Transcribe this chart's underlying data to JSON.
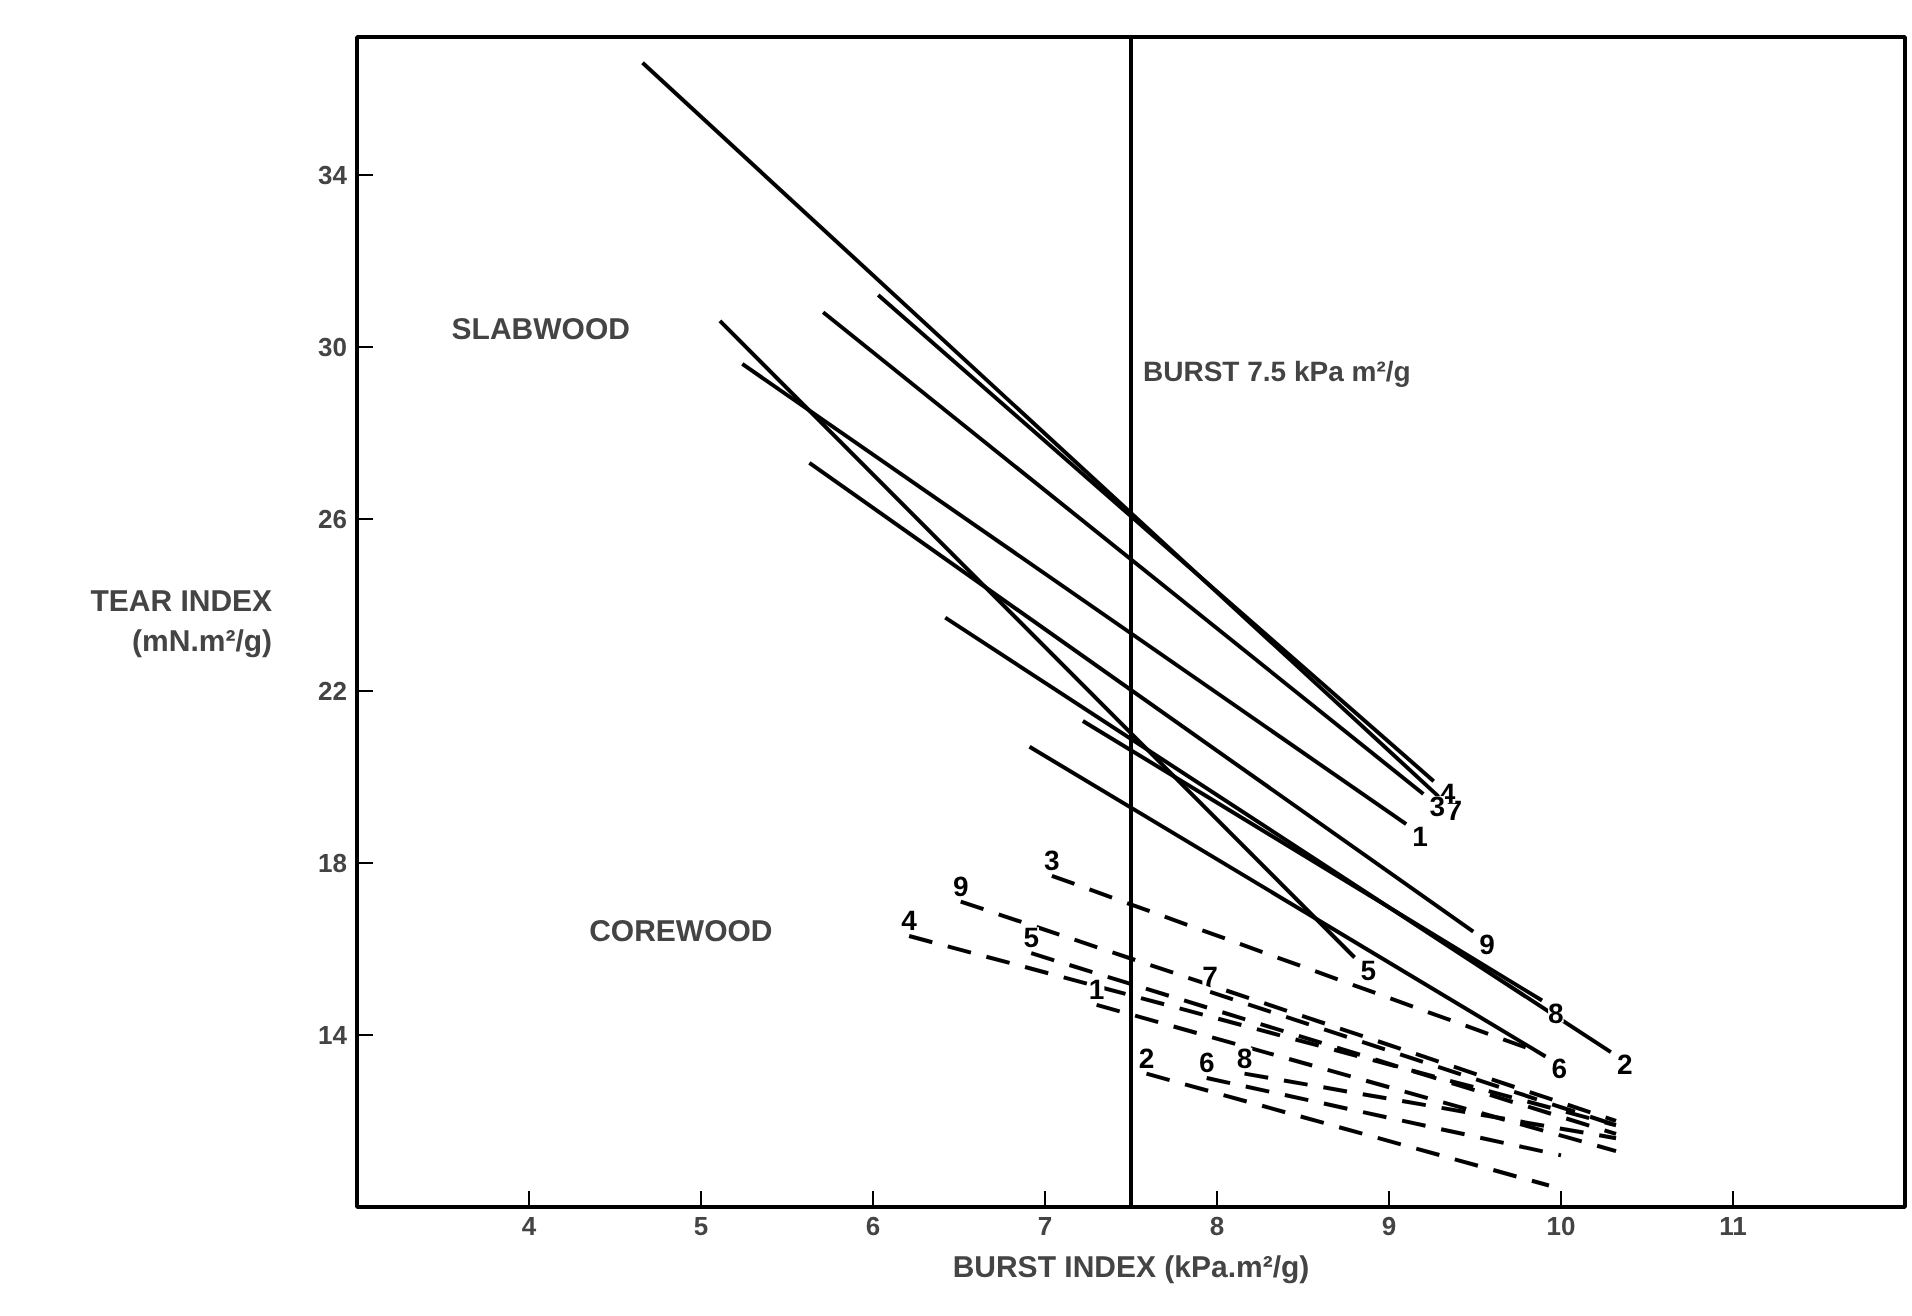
{
  "chart_data": {
    "type": "line",
    "xlabel": "BURST INDEX (kPa.m²/g)",
    "ylabel": "TEAR INDEX\n(mN.m²/g)",
    "xlim": [
      3,
      12
    ],
    "ylim": [
      10,
      37.2
    ],
    "xticks": [
      4,
      5,
      6,
      7,
      8,
      9,
      10,
      11
    ],
    "yticks": [
      14,
      18,
      22,
      26,
      30,
      34
    ],
    "grid": false,
    "marker": "none",
    "series": [
      {
        "name": "7",
        "color": "#000000",
        "line_style": "solid",
        "x": [
          4.66,
          9.3
        ],
        "values": [
          36.6,
          19.5
        ]
      },
      {
        "name": "4",
        "color": "#000000",
        "line_style": "solid",
        "x": [
          6.03,
          9.26
        ],
        "values": [
          31.2,
          19.9
        ]
      },
      {
        "name": "3",
        "color": "#000000",
        "line_style": "solid",
        "x": [
          5.71,
          9.2
        ],
        "values": [
          30.8,
          19.6
        ]
      },
      {
        "name": "1",
        "color": "#000000",
        "line_style": "solid",
        "x": [
          5.24,
          9.1
        ],
        "values": [
          29.6,
          18.9
        ]
      },
      {
        "name": "9",
        "color": "#000000",
        "line_style": "solid",
        "x": [
          5.63,
          9.49
        ],
        "values": [
          27.3,
          16.4
        ]
      },
      {
        "name": "5",
        "color": "#000000",
        "line_style": "solid",
        "x": [
          5.11,
          8.8
        ],
        "values": [
          30.6,
          15.8
        ]
      },
      {
        "name": "2",
        "color": "#000000",
        "line_style": "solid",
        "x": [
          6.42,
          10.29
        ],
        "values": [
          23.7,
          13.6
        ]
      },
      {
        "name": "8",
        "color": "#000000",
        "line_style": "solid",
        "x": [
          7.22,
          9.89
        ],
        "values": [
          21.3,
          14.8
        ]
      },
      {
        "name": "6",
        "color": "#000000",
        "line_style": "solid",
        "x": [
          6.91,
          9.91
        ],
        "values": [
          20.7,
          13.5
        ]
      },
      {
        "name": "3",
        "color": "#000000",
        "line_style": "dashed",
        "x": [
          7.04,
          9.87
        ],
        "values": [
          17.7,
          13.6
        ]
      },
      {
        "name": "9",
        "color": "#000000",
        "line_style": "dashed",
        "x": [
          6.51,
          10.32
        ],
        "values": [
          17.1,
          12.0
        ]
      },
      {
        "name": "4",
        "color": "#000000",
        "line_style": "dashed",
        "x": [
          6.21,
          10.32
        ],
        "values": [
          16.3,
          11.9
        ]
      },
      {
        "name": "5",
        "color": "#000000",
        "line_style": "dashed",
        "x": [
          6.92,
          10.32
        ],
        "values": [
          15.9,
          11.7
        ]
      },
      {
        "name": "7",
        "color": "#000000",
        "line_style": "dashed",
        "x": [
          7.96,
          10.32
        ],
        "values": [
          15.0,
          11.9
        ]
      },
      {
        "name": "1",
        "color": "#000000",
        "line_style": "dashed",
        "x": [
          7.3,
          10.32
        ],
        "values": [
          14.7,
          11.3
        ]
      },
      {
        "name": "2",
        "color": "#000000",
        "line_style": "dashed",
        "x": [
          7.59,
          9.93
        ],
        "values": [
          13.1,
          10.5
        ]
      },
      {
        "name": "6",
        "color": "#000000",
        "line_style": "dashed",
        "x": [
          7.94,
          10.0
        ],
        "values": [
          13.0,
          11.2
        ]
      },
      {
        "name": "8",
        "color": "#000000",
        "line_style": "dashed",
        "x": [
          8.16,
          10.32
        ],
        "values": [
          13.1,
          11.6
        ]
      }
    ],
    "ref_lines": [
      {
        "axis": "x",
        "value": 7.5,
        "label": "BURST 7.5 kPa m²/g",
        "color": "#000000"
      }
    ],
    "annotations": [
      "SLABWOOD",
      "COREWOOD"
    ]
  }
}
